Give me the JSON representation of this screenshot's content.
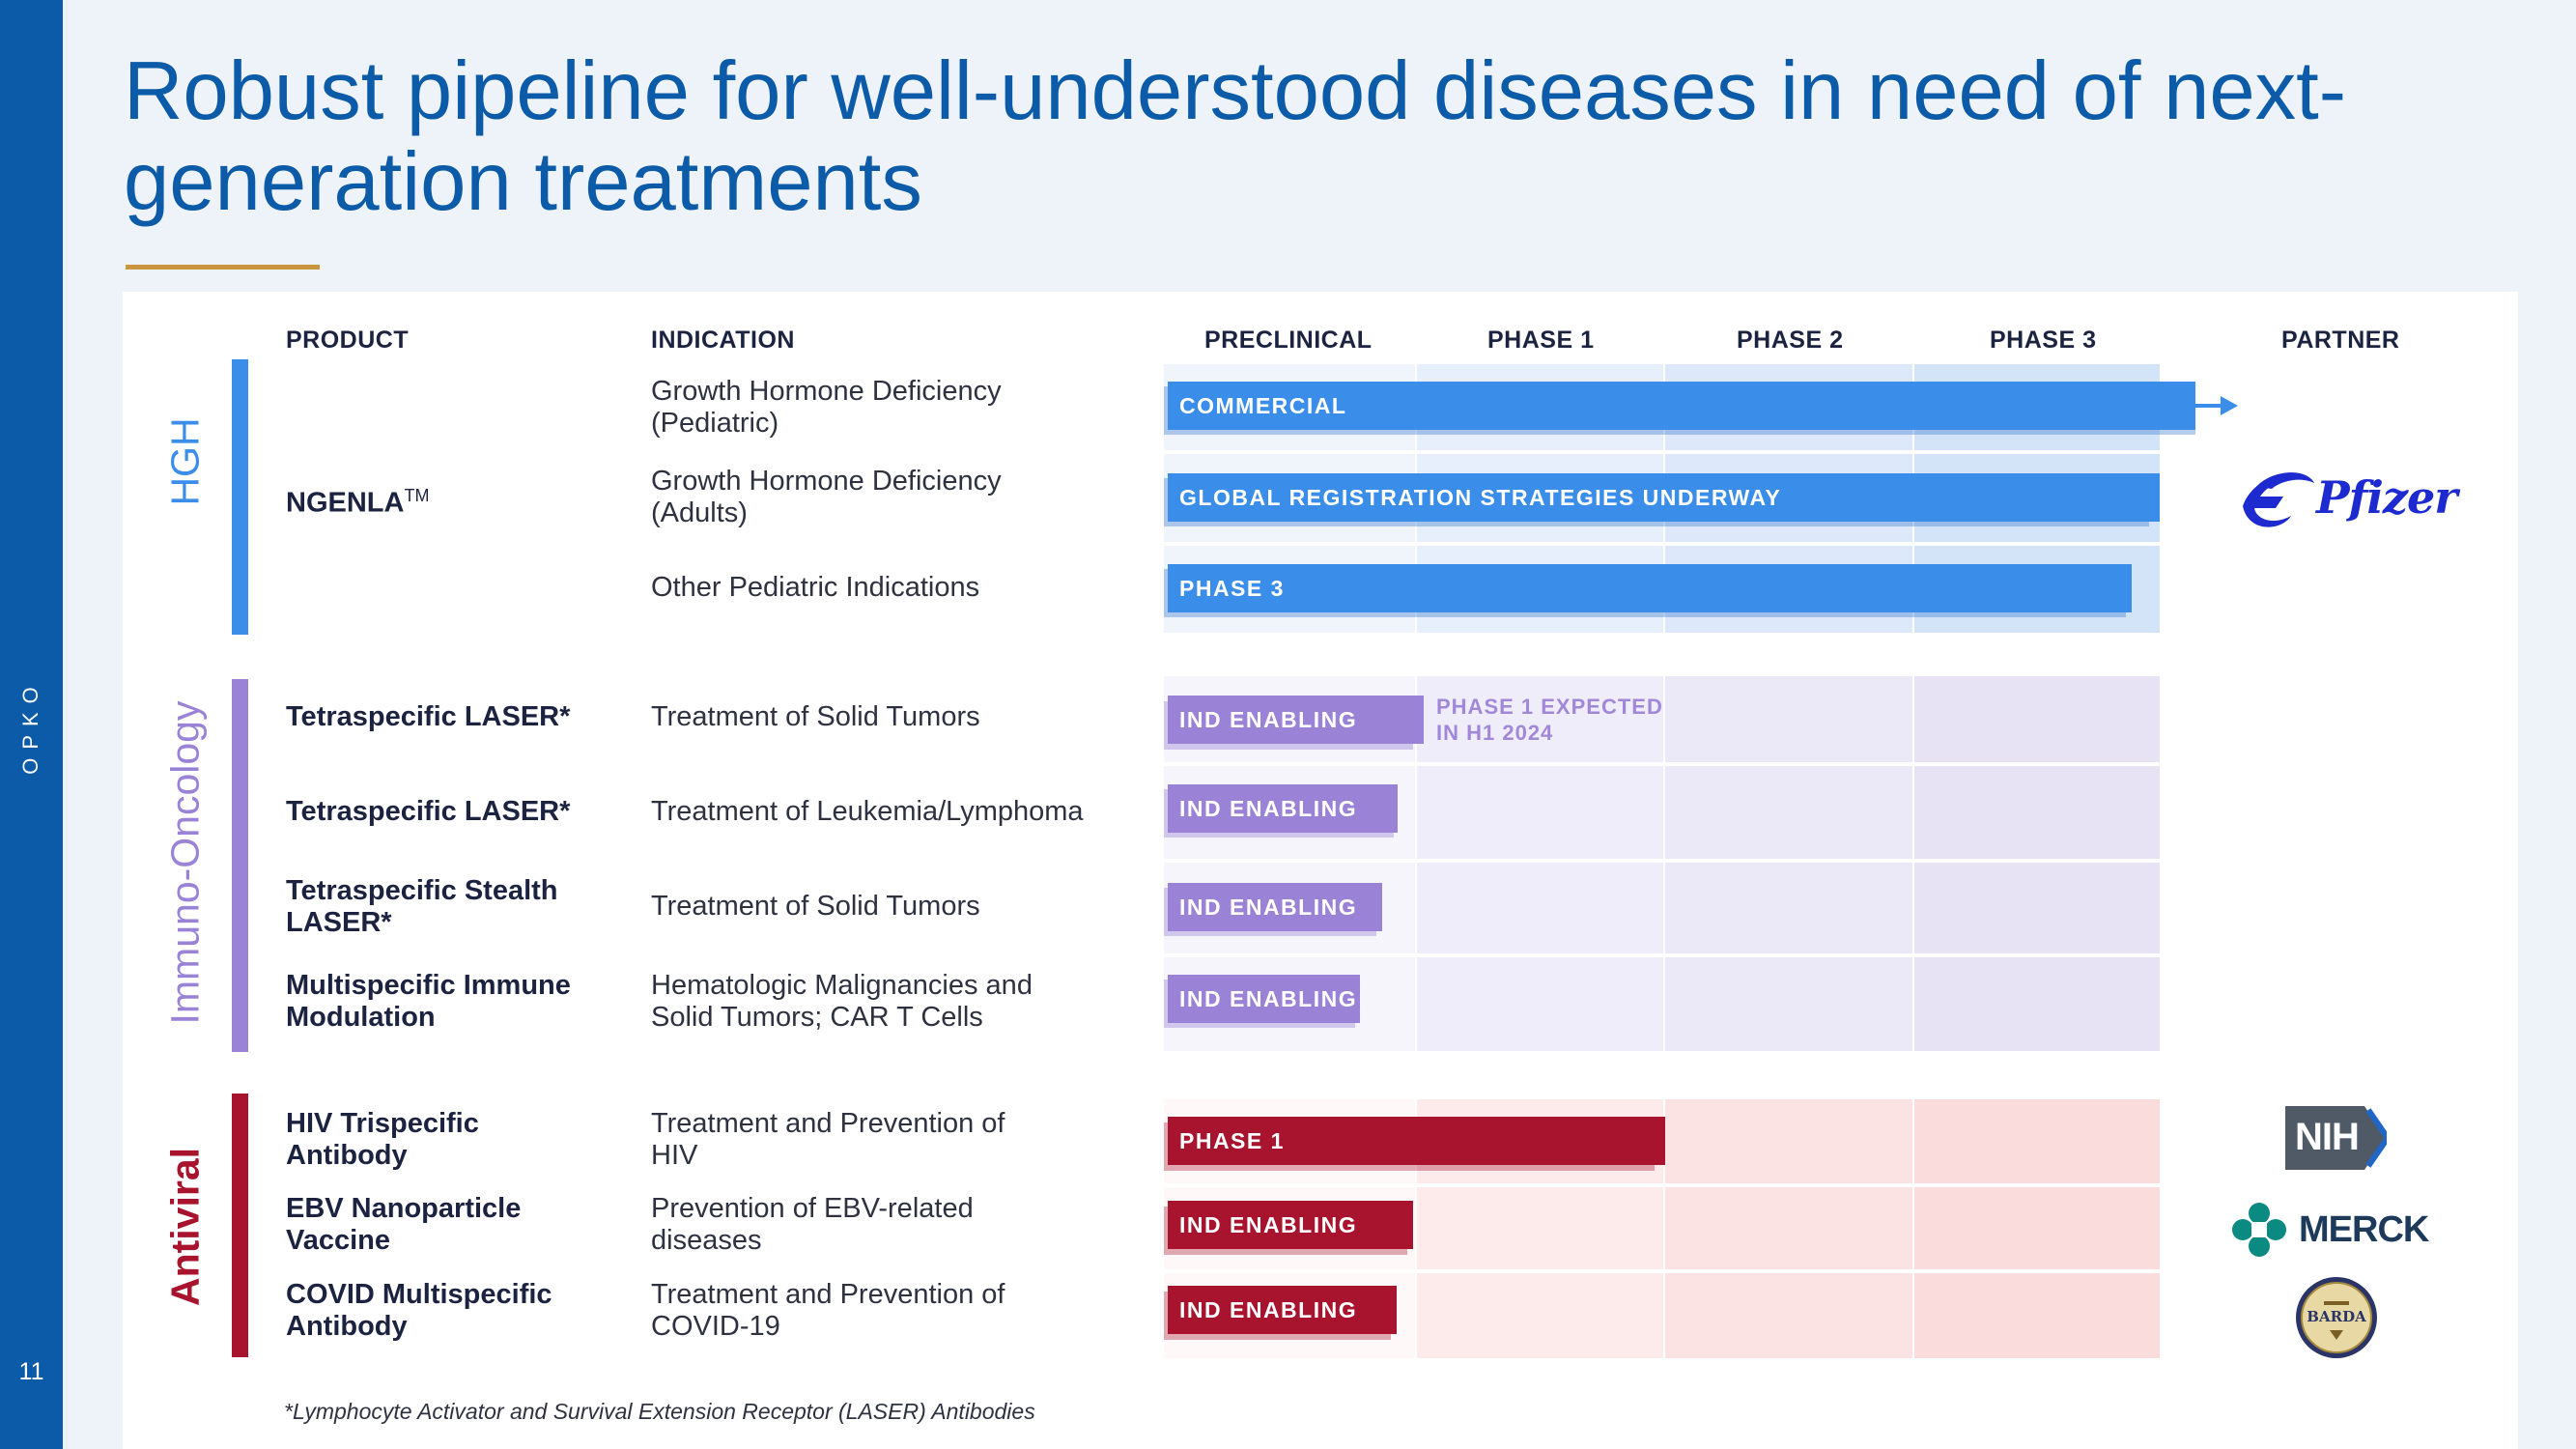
{
  "brand": "OPKO",
  "page_number": "11",
  "title": "Robust pipeline for well-understood diseases in need of next-generation treatments",
  "headers": {
    "product": "PRODUCT",
    "indication": "INDICATION",
    "preclinical": "PRECLINICAL",
    "phase1": "PHASE 1",
    "phase2": "PHASE 2",
    "phase3": "PHASE 3",
    "partner": "PARTNER"
  },
  "categories": {
    "hgh": "HGH",
    "immuno": "Immuno-Oncology",
    "antiviral": "Antiviral"
  },
  "rows": [
    {
      "product": "",
      "indication": "Growth Hormone Deficiency (Pediatric)",
      "status": "COMMERCIAL",
      "progress_stages": 4.1
    },
    {
      "product": "NGENLA",
      "product_mark": "TM",
      "indication": "Growth Hormone Deficiency (Adults)",
      "status": "GLOBAL REGISTRATION STRATEGIES UNDERWAY",
      "progress_stages": 4.0
    },
    {
      "product": "",
      "indication": "Other Pediatric Indications",
      "status": "PHASE 3",
      "progress_stages": 3.9
    },
    {
      "product": "Tetraspecific LASER*",
      "indication": "Treatment of Solid Tumors",
      "status": "IND ENABLING",
      "progress_stages": 1.0,
      "note": "PHASE 1 EXPECTED IN H1 2024"
    },
    {
      "product": "Tetraspecific LASER*",
      "indication": "Treatment of Leukemia/Lymphoma",
      "status": "IND ENABLING",
      "progress_stages": 0.9
    },
    {
      "product": "Tetraspecific Stealth LASER*",
      "indication": "Treatment of Solid Tumors",
      "status": "IND ENABLING",
      "progress_stages": 0.85
    },
    {
      "product": "Multispecific Immune Modulation",
      "indication": "Hematologic Malignancies and Solid Tumors; CAR T Cells",
      "status": "IND ENABLING",
      "progress_stages": 0.75
    },
    {
      "product": "HIV Trispecific Antibody",
      "indication": "Treatment and Prevention of HIV",
      "status": "PHASE 1",
      "progress_stages": 2.0
    },
    {
      "product": "EBV Nanoparticle Vaccine",
      "indication": "Prevention of EBV-related diseases",
      "status": "IND ENABLING",
      "progress_stages": 1.0
    },
    {
      "product": "COVID Multispecific Antibody",
      "indication": "Treatment and Prevention of COVID-19",
      "status": "IND ENABLING",
      "progress_stages": 0.93
    }
  ],
  "partners": {
    "pfizer": "Pfizer",
    "nih": "NIH",
    "merck": "MERCK",
    "barda": "BARDA"
  },
  "footnote": "*Lymphocyte Activator and Survival Extension Receptor (LASER) Antibodies",
  "colors": {
    "brand_blue": "#0b5ba8",
    "hgh": "#3a8de8",
    "immuno": "#9a82d6",
    "antiviral": "#a8142e",
    "gold_rule": "#c9963f"
  }
}
